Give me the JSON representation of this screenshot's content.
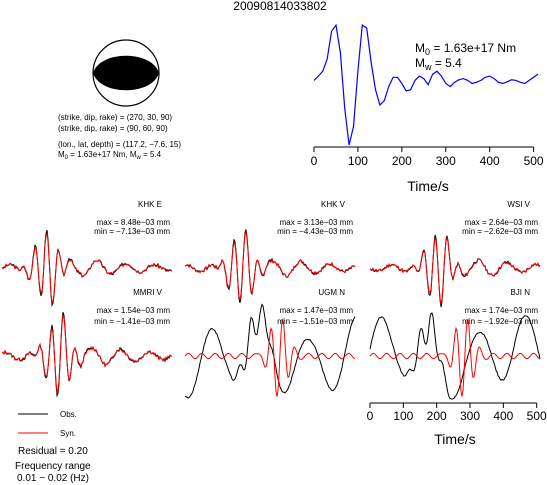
{
  "event_id": "20090814033802",
  "focal": {
    "plane1": "(strike, dip, rake) = (270, 30, 90)",
    "plane2": "(strike, dip, rake) = (90, 60, 90)",
    "location": "(lon., lat, depth) = (117.2, −7.6, 15)",
    "moment_prefix": "M",
    "moment_sub": "0",
    "moment_mid": " = 1.63e+17 Nm, M",
    "magnitude_sub": "w",
    "magnitude_tail": " = 5.4"
  },
  "stf_labels": {
    "m0_main": "M",
    "m0_sub": "0",
    "m0_value": " = 1.63e+17 Nm",
    "mw_main": "M",
    "mw_sub": "w",
    "mw_value": " = 5.4"
  },
  "legend": {
    "obs": "Obs.",
    "syn": "Syn.",
    "residual": "Residual = 0.20",
    "freq_title": "Frequency range",
    "freq_range": "0.01 − 0.02 (Hz)"
  },
  "colors": {
    "stf_line": "#0000ff",
    "obs_line": "#000000",
    "syn_line": "#ff0000"
  },
  "chart_data": [
    {
      "type": "line",
      "name": "source-time-function",
      "xlabel": "Time/s",
      "xlim": [
        0,
        510
      ],
      "x_ticks": [
        0,
        100,
        200,
        300,
        400,
        500
      ],
      "x": [
        0,
        10,
        20,
        30,
        40,
        50,
        60,
        70,
        80,
        90,
        100,
        110,
        120,
        130,
        140,
        150,
        160,
        170,
        180,
        190,
        200,
        210,
        220,
        230,
        240,
        250,
        260,
        270,
        280,
        290,
        300,
        310,
        320,
        330,
        340,
        350,
        360,
        370,
        380,
        390,
        400,
        410,
        420,
        430,
        440,
        450,
        460,
        470,
        480,
        490,
        500,
        510
      ],
      "y": [
        0.05,
        0.12,
        0.2,
        0.4,
        0.85,
        0.95,
        0.5,
        -0.4,
        -1.0,
        -0.7,
        0.2,
        0.95,
        0.9,
        0.35,
        -0.1,
        -0.35,
        -0.28,
        -0.05,
        0.1,
        0.1,
        0.0,
        -0.12,
        -0.1,
        0.05,
        0.12,
        0.08,
        -0.02,
        0.15,
        0.2,
        0.12,
        0.0,
        -0.05,
        0.02,
        0.06,
        0.08,
        0.05,
        0.0,
        0.02,
        0.05,
        0.1,
        0.12,
        0.08,
        0.02,
        0.0,
        0.03,
        0.06,
        0.05,
        0.02,
        0.0,
        0.05,
        0.1,
        0.15
      ]
    },
    {
      "type": "line",
      "name": "waveforms",
      "xlabel": "Time/s",
      "xlim": [
        0,
        510
      ],
      "x_ticks": [
        0,
        100,
        200,
        300,
        400,
        500
      ],
      "stations": [
        {
          "name": "KHK E",
          "max": "max = 8.48e−03 mm",
          "min": "min = −7.13e−03 mm",
          "fit": "good",
          "seed": 3
        },
        {
          "name": "KHK V",
          "max": "max = 3.13e−03 mm",
          "min": "min = −4.43e−03 mm",
          "fit": "good",
          "seed": 7
        },
        {
          "name": "WSI V",
          "max": "max = 2.64e−03 mm",
          "min": "min = −2.62e−03 mm",
          "fit": "good",
          "seed": 11
        },
        {
          "name": "MMRI V",
          "max": "max = 1.54e−03 mm",
          "min": "min = −1.41e−03 mm",
          "fit": "good",
          "seed": 13
        },
        {
          "name": "UGM N",
          "max": "max = 1.47e−03 mm",
          "min": "min = −1.51e−03 mm",
          "fit": "poor",
          "seed": 17
        },
        {
          "name": "BJI N",
          "max": "max = 1.74e−03 mm",
          "min": "min = −1.92e−03 mm",
          "fit": "poor",
          "seed": 19
        }
      ]
    }
  ]
}
